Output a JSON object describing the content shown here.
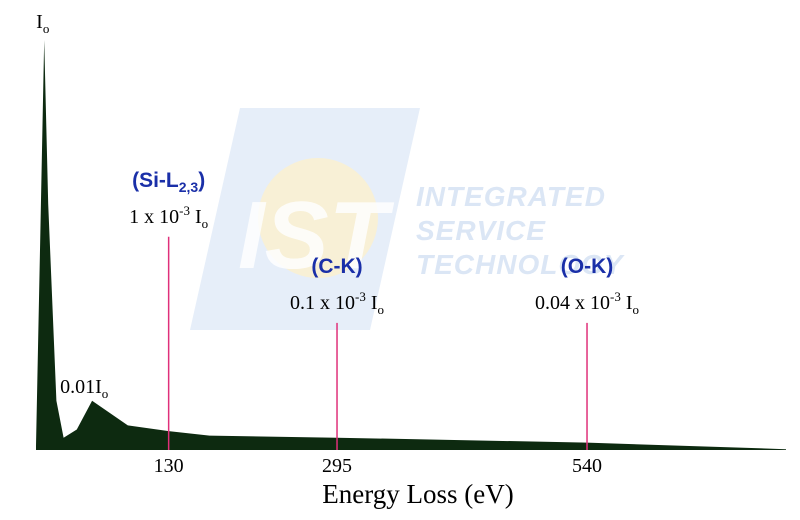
{
  "watermark": {
    "logo_text": "IST",
    "lines": [
      "INTEGRATED",
      "SERVICE",
      "TECHNOLOGY"
    ]
  },
  "chart_data": {
    "type": "area",
    "xlabel": "Energy Loss (eV)",
    "x_ticks": [
      "130",
      "295",
      "540"
    ],
    "x_tick_values": [
      130,
      295,
      540
    ],
    "xlim": [
      0,
      735
    ],
    "ylim": [
      0,
      1.0
    ],
    "spectrum": [
      {
        "x": 0,
        "y": 0.01
      },
      {
        "x": 4,
        "y": 0.5
      },
      {
        "x": 8,
        "y": 1.0
      },
      {
        "x": 12,
        "y": 0.6
      },
      {
        "x": 20,
        "y": 0.12
      },
      {
        "x": 27,
        "y": 0.03
      },
      {
        "x": 40,
        "y": 0.05
      },
      {
        "x": 55,
        "y": 0.12
      },
      {
        "x": 90,
        "y": 0.06
      },
      {
        "x": 130,
        "y": 0.046
      },
      {
        "x": 170,
        "y": 0.035
      },
      {
        "x": 295,
        "y": 0.03
      },
      {
        "x": 540,
        "y": 0.018
      },
      {
        "x": 735,
        "y": 0.002
      }
    ],
    "peak_labels": [
      {
        "base": "I",
        "sub": "o",
        "x": 8,
        "y": 1.0
      },
      {
        "base": "0.01I",
        "sub": "o",
        "x": 55,
        "y": 0.12
      }
    ],
    "edges": [
      {
        "name": "(Si-L",
        "sub": "2,3",
        "close": ")",
        "intensity_pre": "1 x 10",
        "exp": "-3",
        "intensity_post": " I",
        "intensity_sub": "o",
        "x": 130,
        "line_top": 0.52
      },
      {
        "name": "(C-K)",
        "sub": "",
        "close": "",
        "intensity_pre": "0.1 x 10",
        "exp": "-3",
        "intensity_post": " I",
        "intensity_sub": "o",
        "x": 295,
        "line_top": 0.31
      },
      {
        "name": "(O-K)",
        "sub": "",
        "close": "",
        "intensity_pre": "0.04 x 10",
        "exp": "-3",
        "intensity_post": " I",
        "intensity_sub": "o",
        "x": 540,
        "line_top": 0.31
      }
    ],
    "colors": {
      "fill": "#0d2a10",
      "edge_line": "#e0307a",
      "edge_text": "#1a2fa8",
      "watermark": "#dbe6f5"
    },
    "grid": false,
    "legend": "none"
  }
}
